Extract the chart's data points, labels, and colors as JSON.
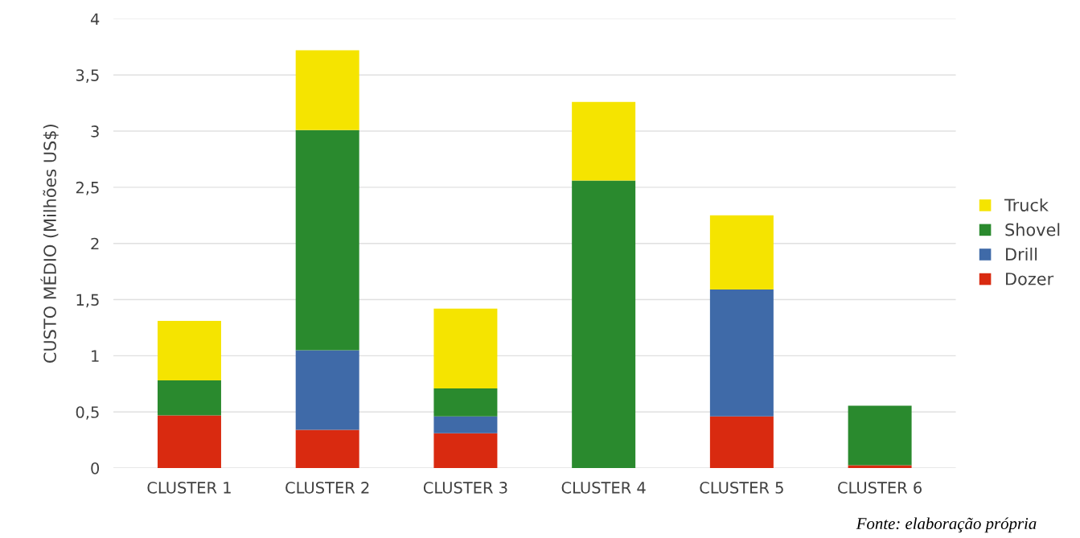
{
  "chart_data": {
    "type": "bar",
    "stacked": true,
    "ylabel": "CUSTO MÉDIO (Milhões US$)",
    "categories": [
      "CLUSTER 1",
      "CLUSTER 2",
      "CLUSTER 3",
      "CLUSTER 4",
      "CLUSTER 5",
      "CLUSTER 6"
    ],
    "series": [
      {
        "name": "Dozer",
        "color": "#d92a10",
        "values": [
          0.47,
          0.34,
          0.31,
          0,
          0.46,
          0.025
        ]
      },
      {
        "name": "Drill",
        "color": "#3f6aa8",
        "values": [
          0,
          0.71,
          0.15,
          0,
          1.13,
          0
        ]
      },
      {
        "name": "Shovel",
        "color": "#2a8a2e",
        "values": [
          0.31,
          1.96,
          0.25,
          2.56,
          0,
          0.53
        ]
      },
      {
        "name": "Truck",
        "color": "#f5e400",
        "values": [
          0.53,
          0.71,
          0.71,
          0.7,
          0.66,
          0
        ]
      }
    ],
    "ylim": [
      0,
      4
    ],
    "yticks": [
      {
        "value": 0,
        "label": "0"
      },
      {
        "value": 0.5,
        "label": "0,5"
      },
      {
        "value": 1,
        "label": "1"
      },
      {
        "value": 1.5,
        "label": "1,5"
      },
      {
        "value": 2,
        "label": "2"
      },
      {
        "value": 2.5,
        "label": "2,5"
      },
      {
        "value": 3,
        "label": "3"
      },
      {
        "value": 3.5,
        "label": "3,5"
      },
      {
        "value": 4,
        "label": "4"
      }
    ],
    "grid": "y",
    "legend": "right",
    "annotations": [
      "Fonte: elaboração própria"
    ]
  }
}
